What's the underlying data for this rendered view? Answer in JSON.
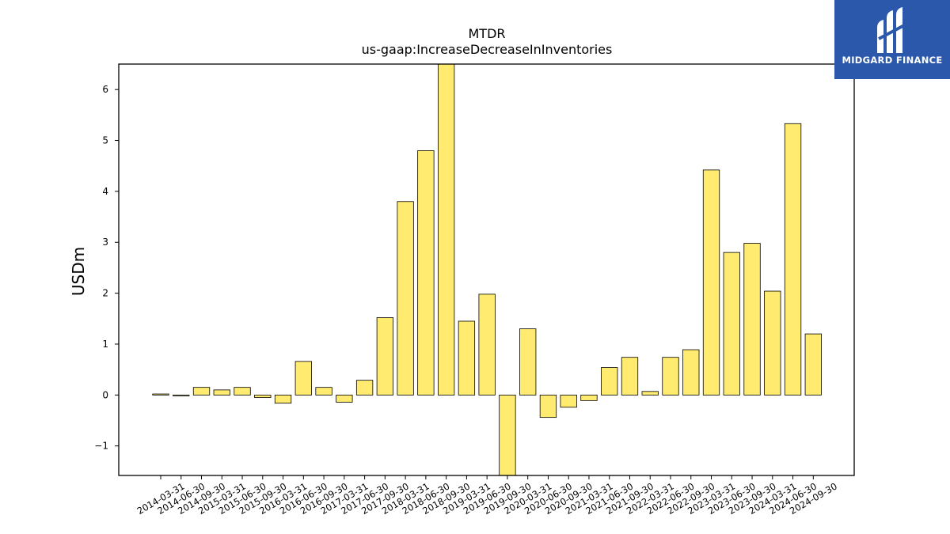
{
  "chart_data": {
    "type": "bar",
    "title": "MTDR",
    "subtitle": "us-gaap:IncreaseDecreaseInInventories",
    "ylabel": "USDm",
    "xlabel": "",
    "ylim": [
      -1.58,
      6.5
    ],
    "yticks": [
      -1,
      0,
      1,
      2,
      3,
      4,
      5,
      6
    ],
    "yticklabels": [
      "−1",
      "0",
      "1",
      "2",
      "3",
      "4",
      "5",
      "6"
    ],
    "grid": false,
    "bar_color": "#ffeb70",
    "categories": [
      "2014-03-31",
      "2014-06-30",
      "2014-09-30",
      "2015-03-31",
      "2015-06-30",
      "2015-09-30",
      "2016-03-31",
      "2016-06-30",
      "2016-09-30",
      "2017-03-31",
      "2017-06-30",
      "2017-09-30",
      "2018-03-31",
      "2018-06-30",
      "2018-09-30",
      "2019-03-31",
      "2019-06-30",
      "2019-09-30",
      "2020-03-31",
      "2020-06-30",
      "2020-09-30",
      "2021-03-31",
      "2021-06-30",
      "2021-09-30",
      "2022-03-31",
      "2022-06-30",
      "2022-09-30",
      "2023-03-31",
      "2023-06-30",
      "2023-09-30",
      "2024-03-31",
      "2024-06-30",
      "2024-09-30"
    ],
    "values": [
      0.02,
      -0.01,
      0.15,
      0.1,
      0.15,
      -0.05,
      -0.16,
      0.66,
      0.15,
      -0.14,
      0.29,
      1.52,
      3.8,
      4.8,
      6.5,
      1.45,
      1.98,
      -1.58,
      1.3,
      -0.44,
      -0.24,
      -0.11,
      0.54,
      0.74,
      0.07,
      0.74,
      0.89,
      4.42,
      2.8,
      2.98,
      2.04,
      5.33,
      1.2
    ]
  },
  "logo": {
    "text": "MIDGARD FINANCE",
    "background": "#2b58aa"
  }
}
